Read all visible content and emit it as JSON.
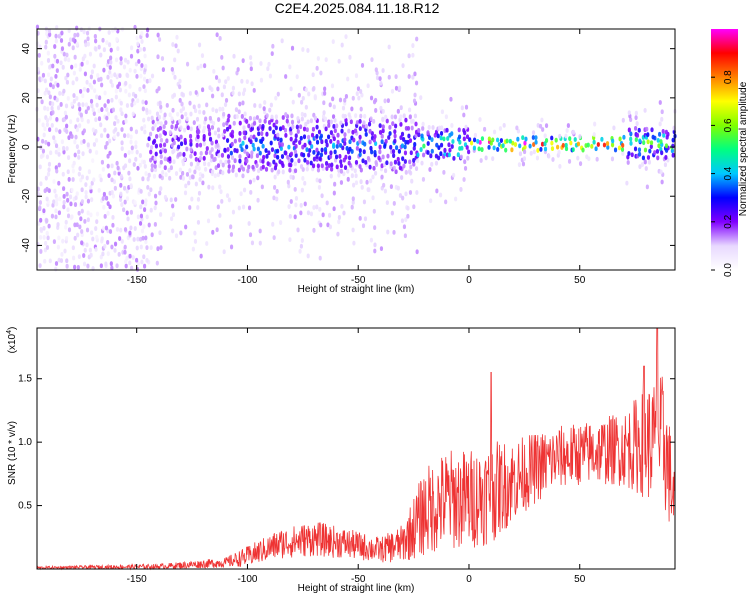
{
  "chart_data": [
    {
      "type": "heatmap",
      "title": "C2E4.2025.084.11.18.R12",
      "xlabel": "Height of straight line (km)",
      "ylabel": "Frequency (Hz)",
      "xlim": [
        -195,
        93
      ],
      "ylim": [
        -50,
        48
      ],
      "xticks": [
        "-150",
        "-100",
        "-50",
        "0",
        "50"
      ],
      "yticks": [
        "40",
        "20",
        "0",
        "-20",
        "-40"
      ],
      "colorbar": {
        "label": "Normalized spectral amplitude",
        "range": [
          0,
          1
        ],
        "ticks": [
          "0.0",
          "0.2",
          "0.4",
          "0.6",
          "0.8"
        ],
        "colormap": [
          "#ffffff",
          "#e8d8ff",
          "#8000ff",
          "#0000ff",
          "#00c8ff",
          "#00ff80",
          "#80ff00",
          "#ffff00",
          "#ff8000",
          "#ff0000",
          "#ff00ff"
        ]
      },
      "bands": [
        {
          "x_from": -195,
          "x_to": -145,
          "freq_half_width": 48,
          "amplitude": 0.1,
          "description": "broadband noise"
        },
        {
          "x_from": -145,
          "x_to": -110,
          "freq_half_width": 14,
          "amplitude": 0.2
        },
        {
          "x_from": -110,
          "x_to": -25,
          "freq_half_width": 12,
          "amplitude": 0.3
        },
        {
          "x_from": -25,
          "x_to": 0,
          "freq_half_width": 6,
          "amplitude": 0.45
        },
        {
          "x_from": 0,
          "x_to": 70,
          "freq_half_width": 3,
          "amplitude": 0.8
        },
        {
          "x_from": 70,
          "x_to": 93,
          "freq_half_width": 6,
          "amplitude": 0.5
        }
      ],
      "ridge_frequency_hz": 0
    },
    {
      "type": "line",
      "xlabel": "Height of straight line (km)",
      "ylabel": "SNR (10 * v/v)",
      "y_multiplier": "(x10",
      "y_multiplier_exp": "4",
      "xlim": [
        -195,
        93
      ],
      "ylim": [
        0,
        1.9
      ],
      "xticks": [
        "-150",
        "-100",
        "-50",
        "0",
        "50"
      ],
      "yticks": [
        "1.5",
        "1.0",
        "0.5"
      ],
      "color": "#ee3333",
      "envelope": [
        {
          "x": -195,
          "mean": 0.01,
          "spread": 0.01
        },
        {
          "x": -140,
          "mean": 0.02,
          "spread": 0.02
        },
        {
          "x": -110,
          "mean": 0.05,
          "spread": 0.04
        },
        {
          "x": -100,
          "mean": 0.1,
          "spread": 0.08
        },
        {
          "x": -85,
          "mean": 0.2,
          "spread": 0.12
        },
        {
          "x": -70,
          "mean": 0.24,
          "spread": 0.14
        },
        {
          "x": -55,
          "mean": 0.2,
          "spread": 0.12
        },
        {
          "x": -40,
          "mean": 0.15,
          "spread": 0.1
        },
        {
          "x": -30,
          "mean": 0.2,
          "spread": 0.15
        },
        {
          "x": -20,
          "mean": 0.45,
          "spread": 0.35
        },
        {
          "x": -10,
          "mean": 0.55,
          "spread": 0.4
        },
        {
          "x": 0,
          "mean": 0.55,
          "spread": 0.4
        },
        {
          "x": 10,
          "mean": 0.6,
          "spread": 0.4
        },
        {
          "x": 25,
          "mean": 0.75,
          "spread": 0.3
        },
        {
          "x": 40,
          "mean": 0.88,
          "spread": 0.25
        },
        {
          "x": 55,
          "mean": 0.92,
          "spread": 0.25
        },
        {
          "x": 70,
          "mean": 0.95,
          "spread": 0.3
        },
        {
          "x": 80,
          "mean": 1.0,
          "spread": 0.45
        },
        {
          "x": 88,
          "mean": 1.0,
          "spread": 0.55
        },
        {
          "x": 93,
          "mean": 0.5,
          "spread": 0.3
        }
      ],
      "peaks": [
        {
          "x": 10,
          "y": 1.55
        },
        {
          "x": 85,
          "y": 1.92
        },
        {
          "x": 79,
          "y": 1.6
        }
      ]
    }
  ]
}
